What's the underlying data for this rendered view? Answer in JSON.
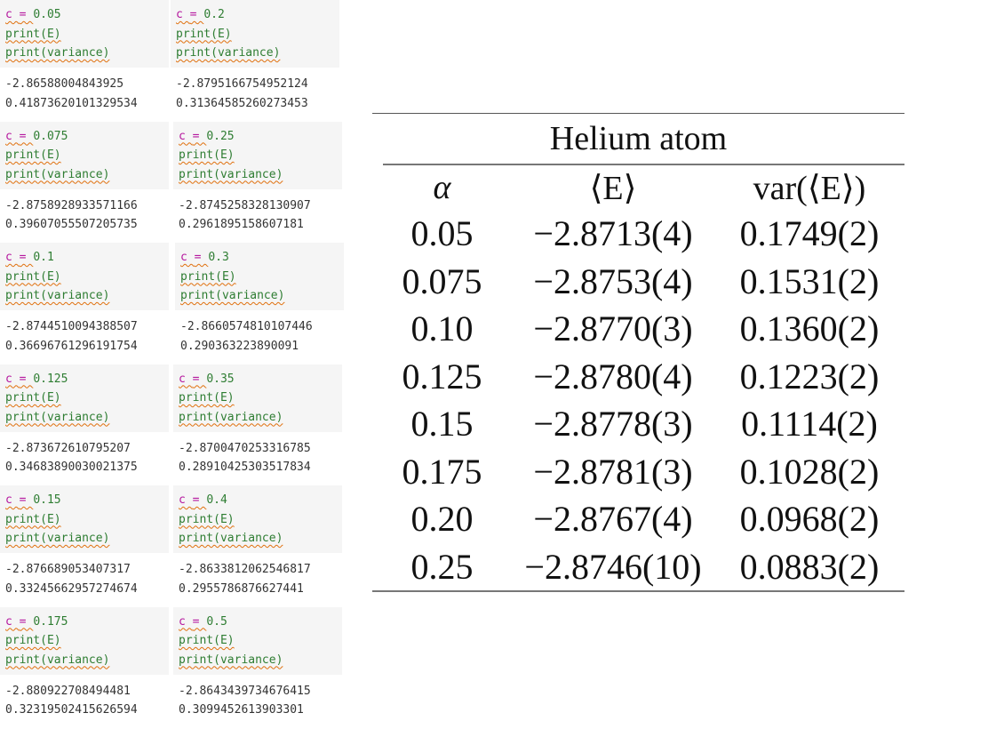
{
  "cells": [
    {
      "c": "0.05",
      "E": "-2.86588004843925",
      "var": "0.41873620101329534"
    },
    {
      "c": "0.2",
      "E": "-2.8795166754952124",
      "var": "0.31364585260273453"
    },
    {
      "c": "0.075",
      "E": "-2.8758928933571166",
      "var": "0.39607055507205735"
    },
    {
      "c": "0.25",
      "E": "-2.8745258328130907",
      "var": "0.2961895158607181"
    },
    {
      "c": "0.1",
      "E": "-2.8744510094388507",
      "var": "0.36696761296191754"
    },
    {
      "c": "0.3",
      "E": "-2.8660574810107446",
      "var": "0.290363223890091"
    },
    {
      "c": "0.125",
      "E": "-2.873672610795207",
      "var": "0.34683890030021375"
    },
    {
      "c": "0.35",
      "E": "-2.8700470253316785",
      "var": "0.28910425303517834"
    },
    {
      "c": "0.15",
      "E": "-2.876689053407317",
      "var": "0.33245662957274674"
    },
    {
      "c": "0.4",
      "E": "-2.8633812062546817",
      "var": "0.2955786876627441"
    },
    {
      "c": "0.175",
      "E": "-2.880922708494481",
      "var": "0.32319502415626594"
    },
    {
      "c": "0.5",
      "E": "-2.8643439734676415",
      "var": "0.3099452613903301"
    }
  ],
  "code": {
    "var_c": "c",
    "assign_op": "=",
    "print_E": "print(E)",
    "print_var": "print(variance)"
  },
  "table": {
    "title": "Helium atom",
    "headers": {
      "alpha": "α",
      "E": "⟨E⟩",
      "var": "var(⟨E⟩)"
    },
    "rows": [
      {
        "alpha": "0.05",
        "E": "−2.8713(4)",
        "var": "0.1749(2)"
      },
      {
        "alpha": "0.075",
        "E": "−2.8753(4)",
        "var": "0.1531(2)"
      },
      {
        "alpha": "0.10",
        "E": "−2.8770(3)",
        "var": "0.1360(2)"
      },
      {
        "alpha": "0.125",
        "E": "−2.8780(4)",
        "var": "0.1223(2)"
      },
      {
        "alpha": "0.15",
        "E": "−2.8778(3)",
        "var": "0.1114(2)"
      },
      {
        "alpha": "0.175",
        "E": "−2.8781(3)",
        "var": "0.1028(2)"
      },
      {
        "alpha": "0.20",
        "E": "−2.8767(4)",
        "var": "0.0968(2)"
      },
      {
        "alpha": "0.25",
        "E": "−2.8746(10)",
        "var": "0.0883(2)"
      }
    ]
  }
}
